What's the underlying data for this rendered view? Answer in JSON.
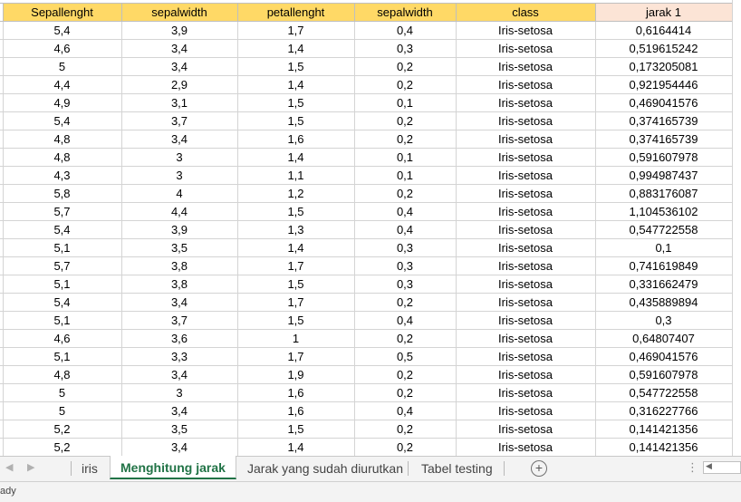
{
  "sheet": {
    "headers": [
      "Sepallenght",
      "sepalwidth",
      "petallenght",
      "sepalwidth",
      "class",
      "jarak 1"
    ],
    "rows": [
      [
        "5,4",
        "3,9",
        "1,7",
        "0,4",
        "Iris-setosa",
        "0,6164414"
      ],
      [
        "4,6",
        "3,4",
        "1,4",
        "0,3",
        "Iris-setosa",
        "0,519615242"
      ],
      [
        "5",
        "3,4",
        "1,5",
        "0,2",
        "Iris-setosa",
        "0,173205081"
      ],
      [
        "4,4",
        "2,9",
        "1,4",
        "0,2",
        "Iris-setosa",
        "0,921954446"
      ],
      [
        "4,9",
        "3,1",
        "1,5",
        "0,1",
        "Iris-setosa",
        "0,469041576"
      ],
      [
        "5,4",
        "3,7",
        "1,5",
        "0,2",
        "Iris-setosa",
        "0,374165739"
      ],
      [
        "4,8",
        "3,4",
        "1,6",
        "0,2",
        "Iris-setosa",
        "0,374165739"
      ],
      [
        "4,8",
        "3",
        "1,4",
        "0,1",
        "Iris-setosa",
        "0,591607978"
      ],
      [
        "4,3",
        "3",
        "1,1",
        "0,1",
        "Iris-setosa",
        "0,994987437"
      ],
      [
        "5,8",
        "4",
        "1,2",
        "0,2",
        "Iris-setosa",
        "0,883176087"
      ],
      [
        "5,7",
        "4,4",
        "1,5",
        "0,4",
        "Iris-setosa",
        "1,104536102"
      ],
      [
        "5,4",
        "3,9",
        "1,3",
        "0,4",
        "Iris-setosa",
        "0,547722558"
      ],
      [
        "5,1",
        "3,5",
        "1,4",
        "0,3",
        "Iris-setosa",
        "0,1"
      ],
      [
        "5,7",
        "3,8",
        "1,7",
        "0,3",
        "Iris-setosa",
        "0,741619849"
      ],
      [
        "5,1",
        "3,8",
        "1,5",
        "0,3",
        "Iris-setosa",
        "0,331662479"
      ],
      [
        "5,4",
        "3,4",
        "1,7",
        "0,2",
        "Iris-setosa",
        "0,435889894"
      ],
      [
        "5,1",
        "3,7",
        "1,5",
        "0,4",
        "Iris-setosa",
        "0,3"
      ],
      [
        "4,6",
        "3,6",
        "1",
        "0,2",
        "Iris-setosa",
        "0,64807407"
      ],
      [
        "5,1",
        "3,3",
        "1,7",
        "0,5",
        "Iris-setosa",
        "0,469041576"
      ],
      [
        "4,8",
        "3,4",
        "1,9",
        "0,2",
        "Iris-setosa",
        "0,591607978"
      ],
      [
        "5",
        "3",
        "1,6",
        "0,2",
        "Iris-setosa",
        "0,547722558"
      ],
      [
        "5",
        "3,4",
        "1,6",
        "0,4",
        "Iris-setosa",
        "0,316227766"
      ],
      [
        "5,2",
        "3,5",
        "1,5",
        "0,2",
        "Iris-setosa",
        "0,141421356"
      ],
      [
        "5,2",
        "3,4",
        "1,4",
        "0,2",
        "Iris-setosa",
        "0,141421356"
      ]
    ]
  },
  "tabs": {
    "items": [
      {
        "label": "iris",
        "active": false
      },
      {
        "label": "Menghitung jarak",
        "active": true
      },
      {
        "label": "Jarak yang sudah diurutkan",
        "active": false
      },
      {
        "label": "Tabel testing",
        "active": false
      }
    ],
    "nav_prev_icon": "◀",
    "nav_next_icon": "▶",
    "add_icon": "+",
    "more_icon": "⋮",
    "scroll_left_icon": "◀"
  },
  "status": {
    "text": "ady"
  },
  "colors": {
    "header_fill": "#ffd966",
    "header_pink": "#fce4d6",
    "active_tab": "#217346"
  }
}
